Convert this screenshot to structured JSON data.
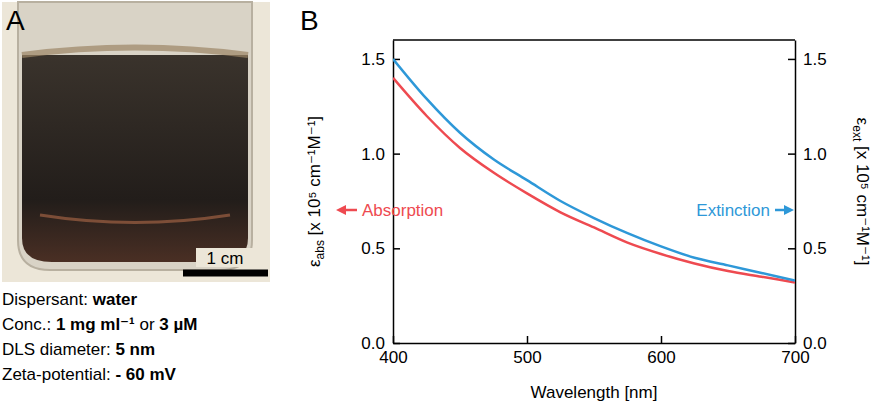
{
  "panel_a": {
    "letter": "A",
    "scale_bar": "1 cm",
    "info": [
      {
        "label": "Dispersant:",
        "values": [
          "water"
        ]
      },
      {
        "label": "Conc.:",
        "values": [
          "1 mg ml⁻¹",
          "3 µM"
        ],
        "joiner": "or"
      },
      {
        "label": "DLS diameter:",
        "values": [
          "5 nm"
        ]
      },
      {
        "label": "Zeta-potential:",
        "values": [
          "- 60 mV"
        ]
      }
    ]
  },
  "chart_data": {
    "type": "line",
    "panel_label": "B",
    "xlabel": "Wavelength [nm]",
    "ylabel": [
      "ε",
      "abs",
      " [x 10⁵ cm⁻¹M⁻¹]"
    ],
    "y2label": [
      "ε",
      "ext",
      " [x 10⁵ cm⁻¹M⁻¹]"
    ],
    "x": [
      400,
      425,
      450,
      475,
      500,
      525,
      550,
      575,
      600,
      625,
      650,
      675,
      700
    ],
    "series": [
      {
        "name": "Absorption",
        "color": "#ee4a50",
        "axis": "y",
        "values": [
          1.4,
          1.2,
          1.03,
          0.9,
          0.79,
          0.69,
          0.61,
          0.53,
          0.47,
          0.42,
          0.38,
          0.35,
          0.32
        ]
      },
      {
        "name": "Extinction",
        "color": "#2e98d8",
        "axis": "y2",
        "values": [
          1.5,
          1.29,
          1.11,
          0.97,
          0.86,
          0.75,
          0.66,
          0.58,
          0.51,
          0.45,
          0.41,
          0.37,
          0.33
        ]
      }
    ],
    "xlim": [
      400,
      700
    ],
    "xticks": [
      400,
      500,
      600,
      700
    ],
    "ylim": [
      0,
      1.6
    ],
    "yticks": [
      {
        "value": 0,
        "label": "0.0"
      },
      {
        "value": 0.5,
        "label": "0.5"
      },
      {
        "value": 1,
        "label": "1.0"
      },
      {
        "value": 1.5,
        "label": "1.5"
      }
    ],
    "y2lim": [
      0,
      1.6
    ],
    "y2ticks": [
      {
        "value": 0,
        "label": "0.0"
      },
      {
        "value": 0.5,
        "label": "0.5"
      },
      {
        "value": 1,
        "label": "1.0"
      },
      {
        "value": 1.5,
        "label": "1.5"
      }
    ]
  }
}
